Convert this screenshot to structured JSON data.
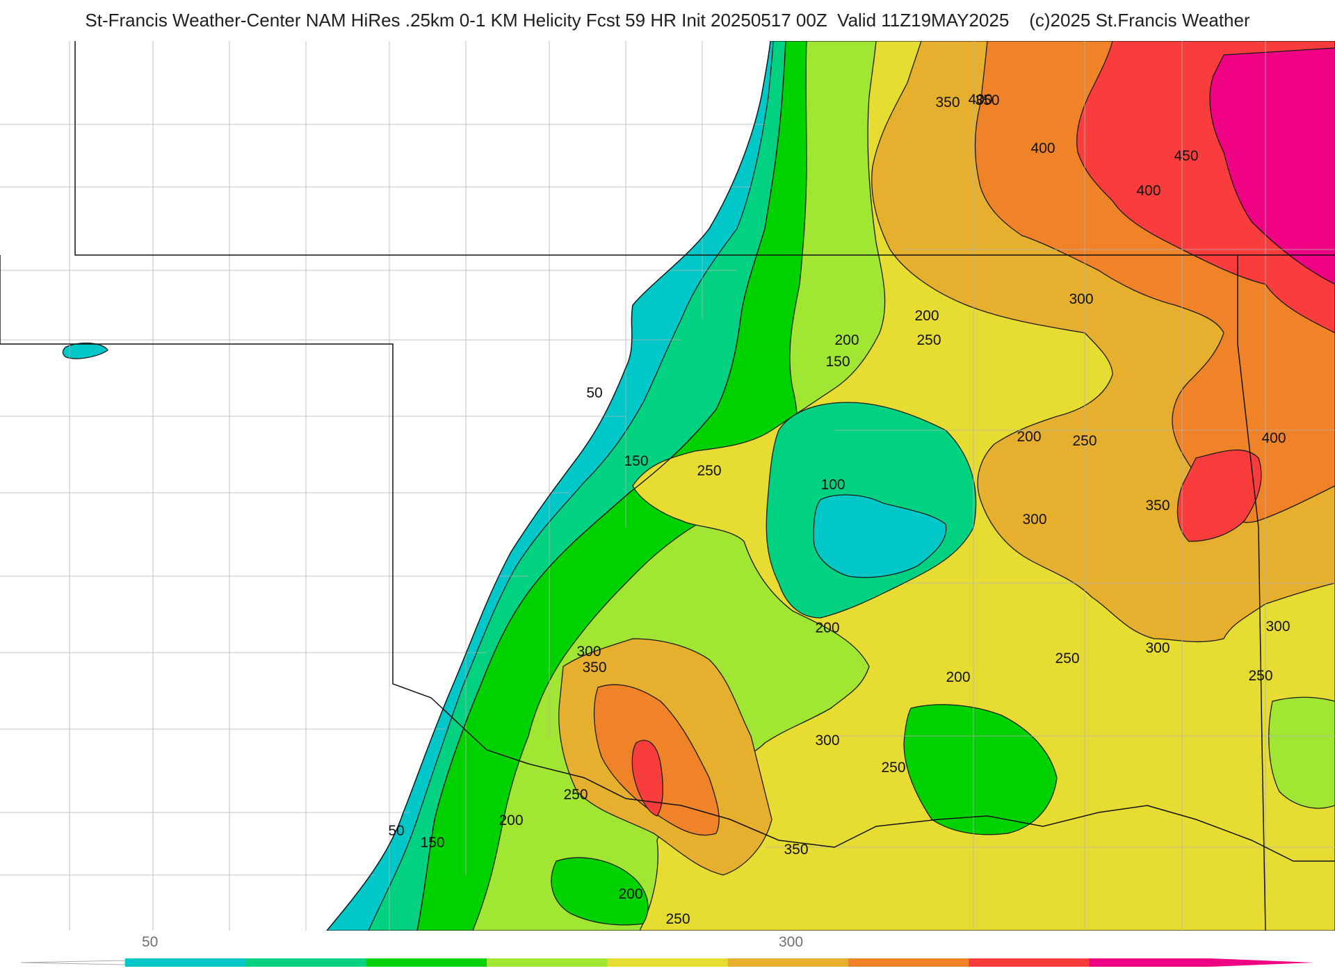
{
  "title": "St-Francis Weather-Center NAM HiRes .25km 0-1 KM Helicity Fcst 59 HR Init 20250517 00Z  Valid 11Z19MAY2025    (c)2025 St.Francis Weather",
  "contour_labels": [
    "50",
    "50",
    "100",
    "150",
    "150",
    "150",
    "200",
    "200",
    "200",
    "200",
    "200",
    "200",
    "200",
    "250",
    "250",
    "250",
    "250",
    "250",
    "250",
    "250",
    "250",
    "300",
    "300",
    "300",
    "300",
    "300",
    "300",
    "350",
    "350",
    "350",
    "350",
    "350",
    "400",
    "400",
    "400",
    "400",
    "450"
  ],
  "colorbar": {
    "tick_labels": [
      "50",
      "300"
    ],
    "colors": [
      "#00c8c8",
      "#00d282",
      "#00d200",
      "#a0e632",
      "#e6dc32",
      "#e6af2d",
      "#f08228",
      "#fa3c3c",
      "#f00082"
    ]
  }
}
